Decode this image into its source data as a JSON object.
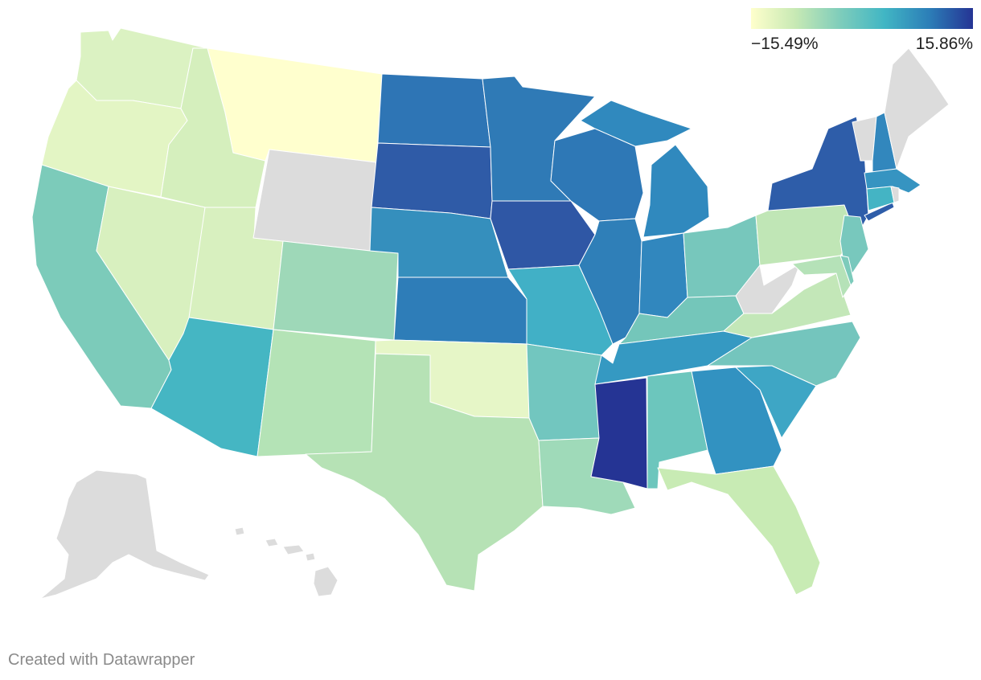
{
  "legend": {
    "min_label": "−15.49%",
    "max_label": "15.86%",
    "colors": [
      "#ffffcc",
      "#c7e9b4",
      "#7fcdbb",
      "#41b6c4",
      "#2c7fb8",
      "#253494"
    ]
  },
  "no_data_color": "#dcdcdc",
  "credit": "Created with Datawrapper",
  "states": [
    {
      "id": "WA",
      "color": "#dbf2c2"
    },
    {
      "id": "OR",
      "color": "#e3f5c4"
    },
    {
      "id": "CA",
      "color": "#7ccbba"
    },
    {
      "id": "ID",
      "color": "#d5efbd"
    },
    {
      "id": "NV",
      "color": "#d8f0bf"
    },
    {
      "id": "UT",
      "color": "#d8f0bf"
    },
    {
      "id": "AZ",
      "color": "#45b6c3"
    },
    {
      "id": "MT",
      "color": "#ffffce"
    },
    {
      "id": "WY",
      "color": "#dcdcdc"
    },
    {
      "id": "CO",
      "color": "#9ed8b8"
    },
    {
      "id": "NM",
      "color": "#b4e3b6"
    },
    {
      "id": "TX",
      "color": "#b6e2b5"
    },
    {
      "id": "OK",
      "color": "#e6f6c7"
    },
    {
      "id": "KS",
      "color": "#2e7db8"
    },
    {
      "id": "NE",
      "color": "#358fbd"
    },
    {
      "id": "SD",
      "color": "#2f5ba7"
    },
    {
      "id": "ND",
      "color": "#2e75b5"
    },
    {
      "id": "MN",
      "color": "#2f7ab6"
    },
    {
      "id": "IA",
      "color": "#2f57a5"
    },
    {
      "id": "MO",
      "color": "#41b0c6"
    },
    {
      "id": "AR",
      "color": "#72c6bf"
    },
    {
      "id": "LA",
      "color": "#9fdab9"
    },
    {
      "id": "MS",
      "color": "#253494"
    },
    {
      "id": "AL",
      "color": "#6cc6bd"
    },
    {
      "id": "TN",
      "color": "#3599c2"
    },
    {
      "id": "KY",
      "color": "#74c6ba"
    },
    {
      "id": "IL",
      "color": "#2f7fb8"
    },
    {
      "id": "WI",
      "color": "#2e78b6"
    },
    {
      "id": "MI",
      "color": "#3089be"
    },
    {
      "id": "IN",
      "color": "#3187be"
    },
    {
      "id": "OH",
      "color": "#77c7bc"
    },
    {
      "id": "WV",
      "color": "#dcdcdc"
    },
    {
      "id": "VA",
      "color": "#c3e7b8"
    },
    {
      "id": "NC",
      "color": "#74c5bd"
    },
    {
      "id": "SC",
      "color": "#3ea6c5"
    },
    {
      "id": "GA",
      "color": "#3292c1"
    },
    {
      "id": "FL",
      "color": "#c8ebb4"
    },
    {
      "id": "PA",
      "color": "#c0e6b6"
    },
    {
      "id": "NY",
      "color": "#2e5da9"
    },
    {
      "id": "NJ",
      "color": "#78c8bd"
    },
    {
      "id": "DE",
      "color": "#7ccbbb"
    },
    {
      "id": "MD",
      "color": "#b5e2b8"
    },
    {
      "id": "CT",
      "color": "#44b4c4"
    },
    {
      "id": "RI",
      "color": "#dcdcdc"
    },
    {
      "id": "MA",
      "color": "#3694c1"
    },
    {
      "id": "VT",
      "color": "#dcdcdc"
    },
    {
      "id": "NH",
      "color": "#3287bd"
    },
    {
      "id": "ME",
      "color": "#dcdcdc"
    },
    {
      "id": "AK",
      "color": "#dcdcdc"
    },
    {
      "id": "HI",
      "color": "#dcdcdc"
    }
  ]
}
